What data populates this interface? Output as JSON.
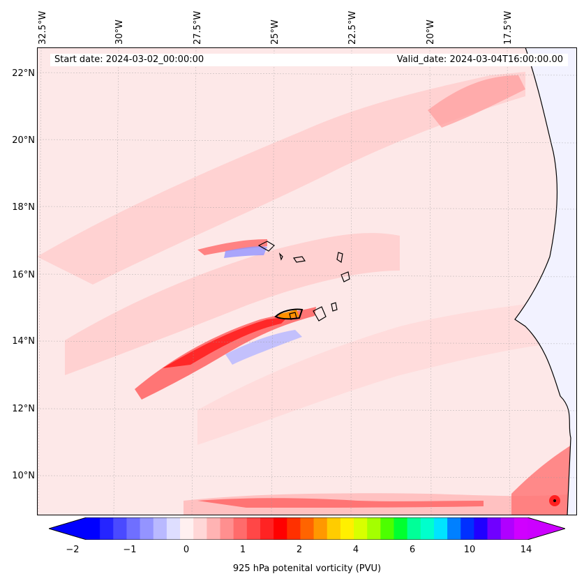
{
  "map": {
    "start_date_text": "Start date: 2024-03-02_00:00:00",
    "valid_date_text": "Valid_date: 2024-03-04T16:00:00.00",
    "lon_labels": [
      "32.5°W",
      "30°W",
      "27.5°W",
      "25°W",
      "22.5°W",
      "20°W",
      "17.5°W"
    ],
    "lat_labels": [
      "22°N",
      "20°N",
      "18°N",
      "16°N",
      "14°N",
      "12°N",
      "10°N"
    ],
    "background_color": "#fde8e8",
    "land_color": "#f2f2ff",
    "coastline_color": "#000000"
  },
  "colorbar": {
    "label": "925 hPa potenital vorticity (PVU)",
    "tick_labels": [
      "−2",
      "−1",
      "0",
      "1",
      "2",
      "4",
      "6",
      "10",
      "14"
    ],
    "extend": "both",
    "colors": [
      "#0000ff",
      "#2525ff",
      "#4a4aff",
      "#6f6fff",
      "#9494ff",
      "#b9b9ff",
      "#dedeff",
      "#fff0f0",
      "#ffd7d7",
      "#ffb3b3",
      "#ff8f8f",
      "#ff6b6b",
      "#ff4747",
      "#ff2323",
      "#ff0000",
      "#ff3000",
      "#ff6400",
      "#ff9800",
      "#ffcc00",
      "#fff000",
      "#d8ff00",
      "#a4ff00",
      "#4cff00",
      "#00ff30",
      "#00ff98",
      "#00ffcc",
      "#00e4ff",
      "#0080ff",
      "#0030ff",
      "#2000ff",
      "#7000ff",
      "#b000ff",
      "#d000ff"
    ],
    "under_color": "#0000ff",
    "over_color": "#cc00ff"
  }
}
